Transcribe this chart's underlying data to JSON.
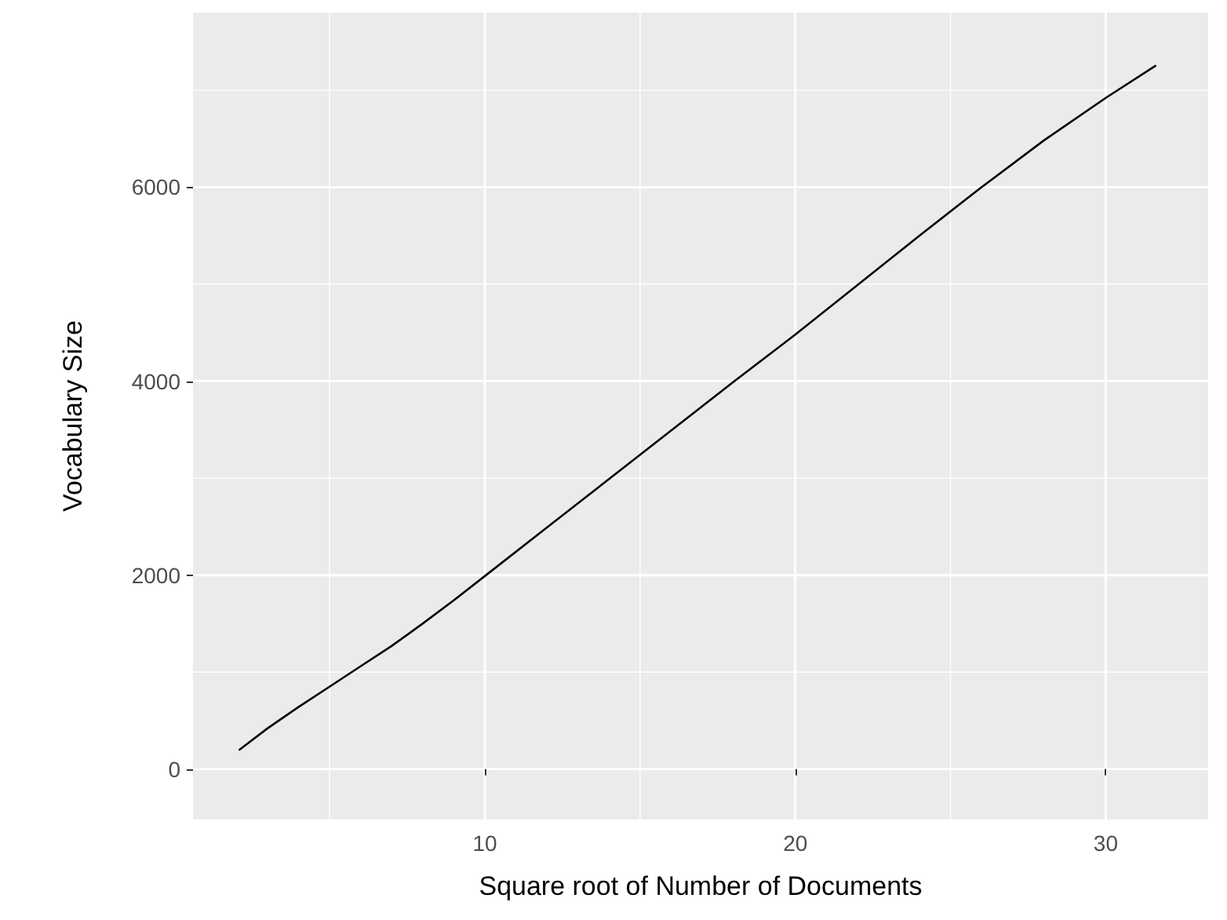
{
  "chart_data": {
    "type": "line",
    "xlabel": "Square root of Number of Documents",
    "ylabel": "Vocabulary Size",
    "x": [
      2.1,
      3,
      4,
      5,
      6,
      7,
      8,
      9,
      10,
      12,
      14,
      16,
      18,
      20,
      22,
      24,
      26,
      28,
      30,
      31.6
    ],
    "series": [
      {
        "color": "#000000",
        "values": [
          200,
          420,
          640,
          850,
          1060,
          1270,
          1500,
          1740,
          1990,
          2490,
          2990,
          3490,
          3990,
          4480,
          4990,
          5500,
          6000,
          6480,
          6920,
          7250
        ]
      }
    ],
    "xlim": [
      0.6,
      33.3
    ],
    "xticks": [
      {
        "value": 5,
        "label": null
      },
      10,
      {
        "value": 15,
        "label": null
      },
      20,
      {
        "value": 25,
        "label": null
      },
      30
    ],
    "ylim": [
      -520,
      7800
    ],
    "yticks": [
      0,
      {
        "value": 1000,
        "label": null
      },
      2000,
      {
        "value": 3000,
        "label": null
      },
      4000,
      {
        "value": 5000,
        "label": null
      },
      6000,
      {
        "value": 7000,
        "label": null
      }
    ],
    "grid": true,
    "marker": "none",
    "line_style": "solid"
  }
}
